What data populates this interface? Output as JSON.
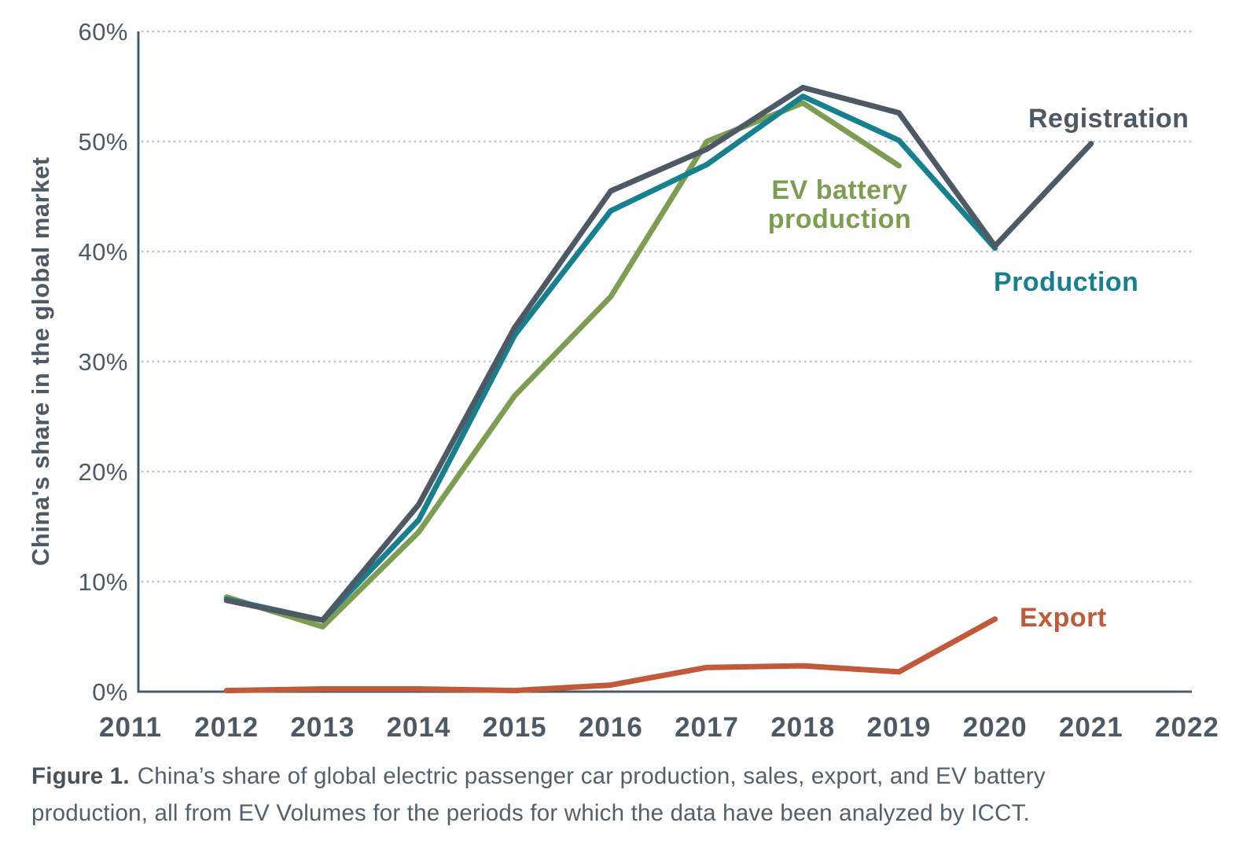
{
  "figure": {
    "y_axis_title": "China's share in the global market",
    "caption": {
      "label": "Figure 1.",
      "line1": "China’s share of global electric passenger car production, sales, export, and EV battery",
      "line2": "production, all from EV Volumes for the periods for which the data have been analyzed by ICCT."
    }
  },
  "chart_data": {
    "type": "line",
    "title": "",
    "xlabel": "",
    "ylabel": "China's share in the global market",
    "xlim": [
      2011,
      2022
    ],
    "ylim": [
      0,
      60
    ],
    "grid": "horizontal dotted gridlines every 10%",
    "legend_position": "inline labels near line ends",
    "x_ticks": [
      {
        "v": 2011,
        "label": "2011"
      },
      {
        "v": 2012,
        "label": "2012"
      },
      {
        "v": 2013,
        "label": "2013"
      },
      {
        "v": 2014,
        "label": "2014"
      },
      {
        "v": 2015,
        "label": "2015"
      },
      {
        "v": 2016,
        "label": "2016"
      },
      {
        "v": 2017,
        "label": "2017"
      },
      {
        "v": 2018,
        "label": "2018"
      },
      {
        "v": 2019,
        "label": "2019"
      },
      {
        "v": 2020,
        "label": "2020"
      },
      {
        "v": 2021,
        "label": "2021"
      },
      {
        "v": 2022,
        "label": "2022"
      }
    ],
    "y_ticks": [
      {
        "v": 0,
        "label": "0%"
      },
      {
        "v": 10,
        "label": "10%"
      },
      {
        "v": 20,
        "label": "20%"
      },
      {
        "v": 30,
        "label": "30%"
      },
      {
        "v": 40,
        "label": "40%"
      },
      {
        "v": 50,
        "label": "50%"
      },
      {
        "v": 60,
        "label": "60%"
      }
    ],
    "series": [
      {
        "name": "EV battery production",
        "color": "#7d9e52",
        "x": [
          2012,
          2013,
          2014,
          2015,
          2016,
          2017,
          2018,
          2019
        ],
        "values": [
          8.6,
          5.9,
          14.5,
          26.9,
          35.9,
          50.0,
          53.5,
          47.8
        ]
      },
      {
        "name": "Production",
        "color": "#17808f",
        "x": [
          2012,
          2013,
          2014,
          2015,
          2016,
          2017,
          2018,
          2019,
          2020
        ],
        "values": [
          8.4,
          6.5,
          15.6,
          32.4,
          43.7,
          47.9,
          54.1,
          50.1,
          40.3
        ]
      },
      {
        "name": "Registration",
        "color": "#4d5964",
        "x": [
          2012,
          2013,
          2014,
          2015,
          2016,
          2017,
          2018,
          2019,
          2020,
          2021
        ],
        "values": [
          8.3,
          6.5,
          17.0,
          33.1,
          45.5,
          49.3,
          54.9,
          52.6,
          40.5,
          49.8
        ]
      },
      {
        "name": "Export",
        "color": "#c15a3b",
        "x": [
          2012,
          2013,
          2014,
          2015,
          2016,
          2017,
          2018,
          2019,
          2020
        ],
        "values": [
          0.1,
          0.25,
          0.25,
          0.1,
          0.6,
          2.2,
          2.35,
          1.8,
          6.6
        ]
      }
    ]
  },
  "colors": {
    "background": "#ffffff",
    "axis": "#4d5964",
    "grid_dots": "#c4c8cc",
    "tick_text": "#4d5964",
    "caption_text": "#545f6a",
    "registration_line": "#4d5964",
    "production_line": "#17808f",
    "ev_battery_line": "#7d9e52",
    "export_line": "#c15a3b"
  }
}
